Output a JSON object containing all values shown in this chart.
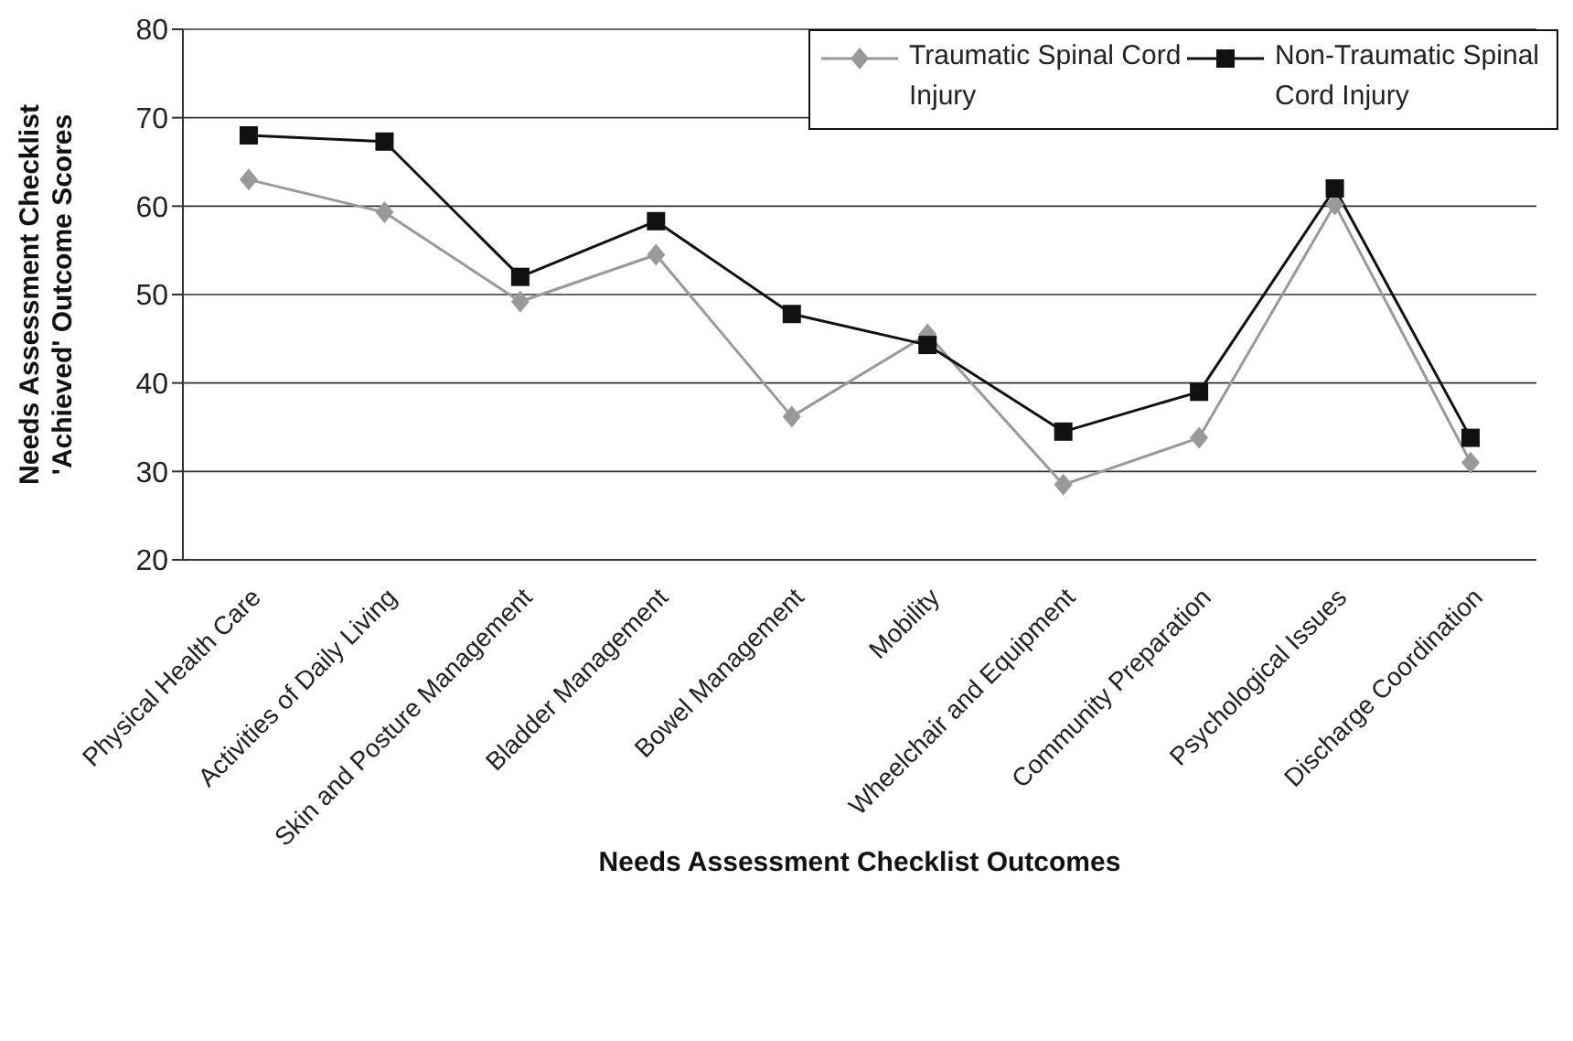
{
  "chart_data": {
    "type": "line",
    "xlabel": "Needs Assessment Checklist Outcomes",
    "ylabel": "Needs Assessment Checklist 'Achieved' Outcome Scores",
    "categories": [
      "Physical Health Care",
      "Activities of Daily Living",
      "Skin and Posture Management",
      "Bladder Management",
      "Bowel Management",
      "Mobility",
      "Wheelchair and Equipment",
      "Community Preparation",
      "Psychological Issues",
      "Discharge Coordination"
    ],
    "series": [
      {
        "name": "Traumatic Spinal Cord Injury",
        "color": "#999999",
        "marker": "diamond",
        "values": [
          63,
          59.3,
          49.2,
          54.5,
          36.2,
          45.5,
          28.5,
          33.8,
          60.2,
          31
        ]
      },
      {
        "name": "Non-Traumatic Spinal Cord Injury",
        "color": "#111111",
        "marker": "square",
        "values": [
          68,
          67.3,
          52,
          58.3,
          47.8,
          44.3,
          34.5,
          39,
          62,
          33.8
        ]
      }
    ],
    "ylim": [
      20,
      80
    ],
    "yticks": [
      20,
      30,
      40,
      50,
      60,
      70,
      80
    ],
    "grid": "y",
    "legend": "top right",
    "line_style": "solid"
  }
}
